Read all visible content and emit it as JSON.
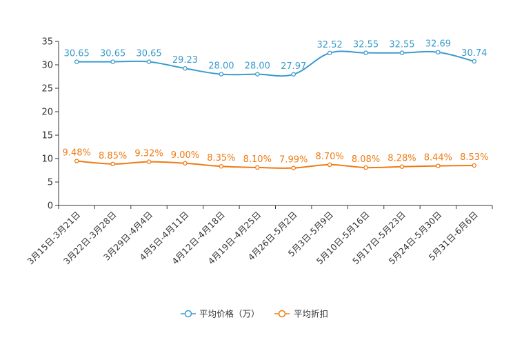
{
  "chart_data": {
    "type": "line",
    "title": "",
    "xlabel": "",
    "ylabel": "",
    "ylim": [
      0,
      35
    ],
    "yticks": [
      0,
      5,
      10,
      15,
      20,
      25,
      30,
      35
    ],
    "grid": false,
    "legend_position": "bottom-center",
    "categories": [
      "3月15日-3月21日",
      "3月22日-3月28日",
      "3月29日-4月4日",
      "4月5日-4月11日",
      "4月12日-4月18日",
      "4月19日-4月25日",
      "4月26日-5月2日",
      "5月3日-5月9日",
      "5月10日-5月16日",
      "5月17日-5月23日",
      "5月24日-5月30日",
      "5月31日-6月6日"
    ],
    "series": [
      {
        "name": "平均价格（万）",
        "color": "#3a9bcc",
        "values": [
          30.65,
          30.65,
          30.65,
          29.23,
          28.0,
          28.0,
          27.97,
          32.52,
          32.55,
          32.55,
          32.69,
          30.74
        ],
        "labels": [
          "30.65",
          "30.65",
          "30.65",
          "29.23",
          "28.00",
          "28.00",
          "27.97",
          "32.52",
          "32.55",
          "32.55",
          "32.69",
          "30.74"
        ]
      },
      {
        "name": "平均折扣",
        "color": "#f07a12",
        "values": [
          9.48,
          8.85,
          9.32,
          9.0,
          8.35,
          8.1,
          7.99,
          8.7,
          8.08,
          8.28,
          8.44,
          8.53
        ],
        "labels": [
          "9.48%",
          "8.85%",
          "9.32%",
          "9.00%",
          "8.35%",
          "8.10%",
          "7.99%",
          "8.70%",
          "8.08%",
          "8.28%",
          "8.44%",
          "8.53%"
        ]
      }
    ]
  }
}
